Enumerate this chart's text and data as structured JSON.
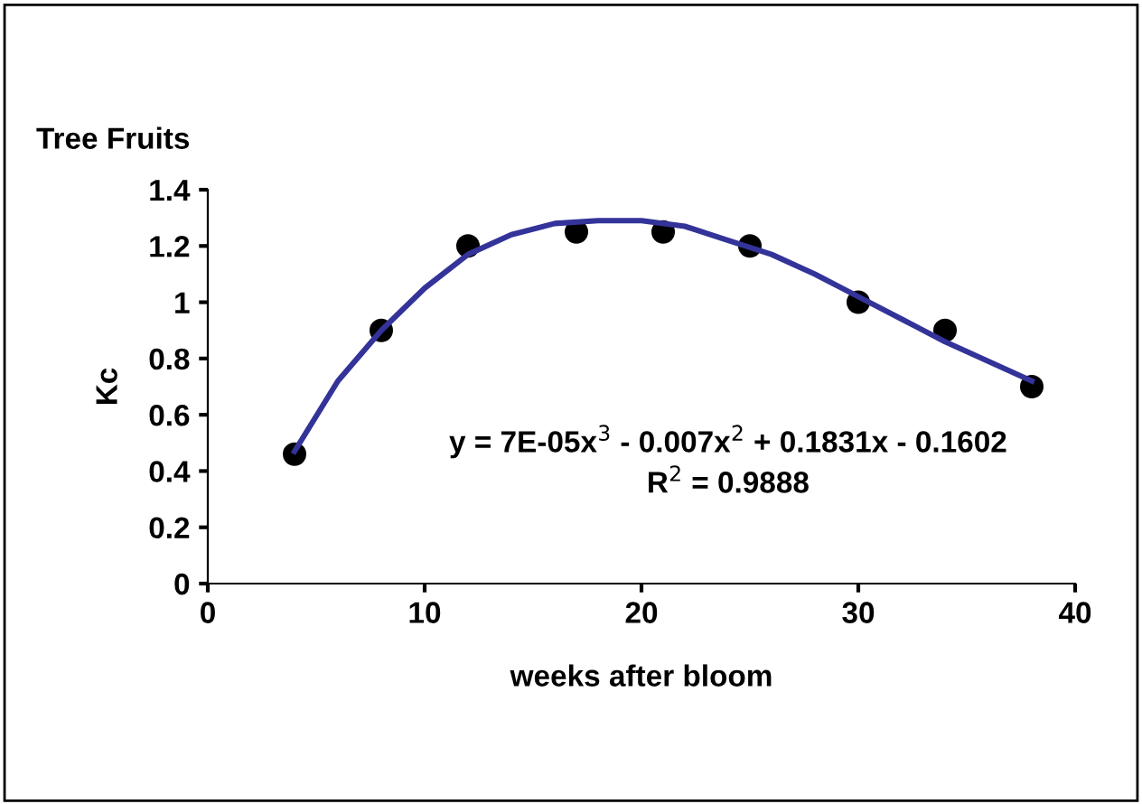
{
  "chart_data": {
    "type": "scatter",
    "title": "Tree Fruits",
    "xlabel": "weeks after bloom",
    "ylabel": "Kc",
    "xlim": [
      0,
      40
    ],
    "xticks": [
      0,
      10,
      20,
      30,
      40
    ],
    "ylim": [
      0,
      1.4
    ],
    "yticks": [
      0,
      0.2,
      0.4,
      0.6,
      0.8,
      1,
      1.2,
      1.4
    ],
    "grid": false,
    "legend": false,
    "series": [
      {
        "marker": "circle",
        "color": "#000000",
        "x": [
          4,
          8,
          12,
          17,
          21,
          25,
          30,
          34,
          38
        ],
        "values": [
          0.46,
          0.9,
          1.2,
          1.25,
          1.25,
          1.2,
          1.0,
          0.9,
          0.7
        ]
      },
      {
        "type": "line",
        "marker": "none",
        "color": "#333399",
        "line_style": "solid",
        "x": [
          4,
          6,
          8,
          10,
          12,
          14,
          16,
          18,
          20,
          22,
          24,
          26,
          28,
          30,
          32,
          34,
          36,
          38
        ],
        "values": [
          0.47,
          0.72,
          0.9,
          1.05,
          1.17,
          1.24,
          1.28,
          1.29,
          1.29,
          1.27,
          1.22,
          1.17,
          1.1,
          1.02,
          0.94,
          0.86,
          0.79,
          0.72
        ]
      }
    ],
    "annotations": [
      "y = 7E-05x$^{3}$ - 0.007x$^{2}$ + 0.1831x - 0.1602",
      "R$^{2}$ = 0.9888"
    ]
  }
}
